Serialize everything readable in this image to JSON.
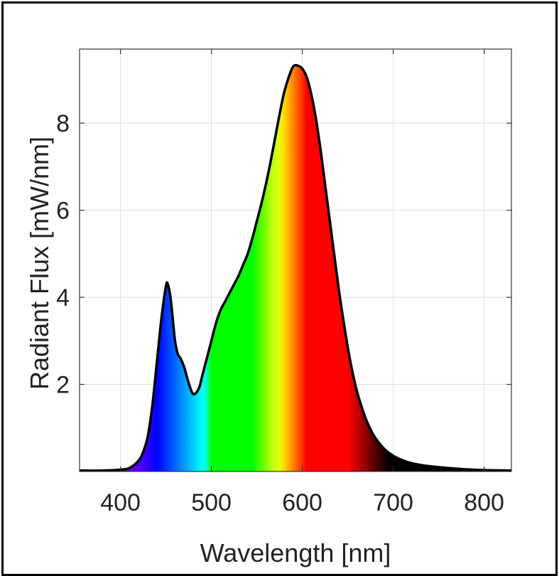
{
  "chart_data": {
    "type": "area",
    "title": "",
    "xlabel": "Wavelength [nm]",
    "ylabel": "Radiant Flux [mW/nm]",
    "xlim": [
      355,
      830
    ],
    "ylim": [
      0,
      9.7
    ],
    "xticks": [
      400,
      500,
      600,
      700,
      800
    ],
    "xtick_labels": [
      "400",
      "500",
      "600",
      "700",
      "800"
    ],
    "yticks": [
      2,
      4,
      6,
      8
    ],
    "ytick_labels": [
      "2",
      "4",
      "6",
      "8"
    ],
    "grid": true,
    "fill": "visible-spectrum gradient under the curve",
    "line_color": "#000000",
    "series": [
      {
        "x": [
          355,
          380,
          400,
          410,
          420,
          425,
          430,
          435,
          440,
          445,
          450,
          452,
          455,
          458,
          460,
          463,
          466,
          470,
          474,
          478,
          480,
          483,
          487,
          490,
          495,
          500,
          505,
          510,
          515,
          520,
          525,
          530,
          535,
          540,
          545,
          550,
          555,
          560,
          565,
          570,
          575,
          580,
          585,
          590,
          595,
          600,
          605,
          610,
          615,
          620,
          625,
          630,
          635,
          640,
          645,
          650,
          655,
          660,
          665,
          670,
          675,
          680,
          690,
          700,
          710,
          720,
          730,
          740,
          760,
          780,
          800,
          830
        ],
        "y": [
          0.02,
          0.02,
          0.04,
          0.08,
          0.25,
          0.45,
          0.8,
          1.5,
          2.5,
          3.5,
          4.25,
          4.3,
          4.0,
          3.4,
          3.0,
          2.7,
          2.6,
          2.4,
          2.1,
          1.85,
          1.78,
          1.8,
          1.95,
          2.2,
          2.6,
          3.0,
          3.4,
          3.7,
          3.9,
          4.1,
          4.3,
          4.5,
          4.75,
          5.0,
          5.35,
          5.75,
          6.15,
          6.6,
          7.1,
          7.65,
          8.2,
          8.7,
          9.05,
          9.3,
          9.32,
          9.25,
          9.05,
          8.65,
          8.1,
          7.4,
          6.6,
          5.8,
          5.0,
          4.2,
          3.5,
          2.85,
          2.3,
          1.85,
          1.5,
          1.2,
          0.97,
          0.78,
          0.52,
          0.36,
          0.26,
          0.19,
          0.15,
          0.12,
          0.08,
          0.05,
          0.03,
          0.02
        ]
      }
    ]
  }
}
